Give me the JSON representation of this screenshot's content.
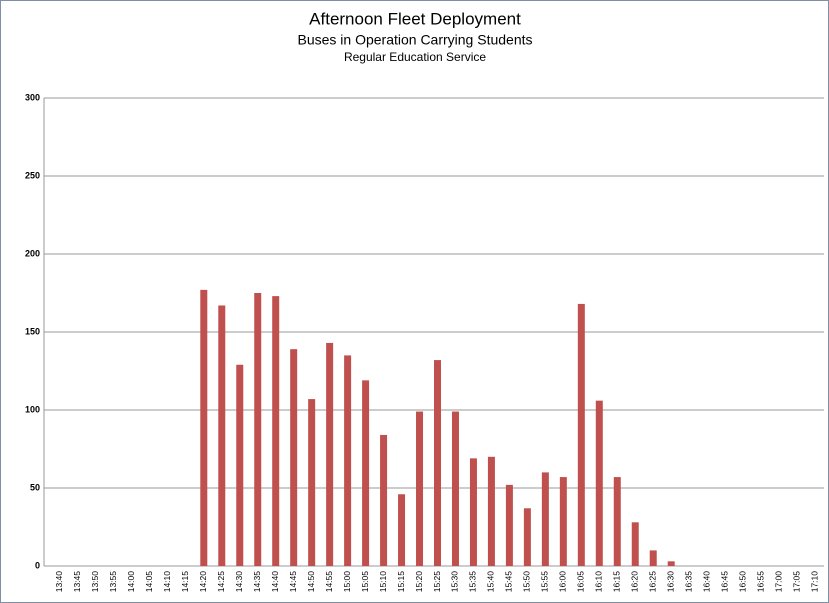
{
  "chart_data": {
    "type": "bar",
    "title": "Afternoon Fleet Deployment",
    "subtitle": "Buses in Operation Carrying Students",
    "subsubtitle": "Regular Education Service",
    "categories": [
      "13:40",
      "13:45",
      "13:50",
      "13:55",
      "14:00",
      "14:05",
      "14:10",
      "14:15",
      "14:20",
      "14:25",
      "14:30",
      "14:35",
      "14:40",
      "14:45",
      "14:50",
      "14:55",
      "15:00",
      "15:05",
      "15:10",
      "15:15",
      "15:20",
      "15:25",
      "15:30",
      "15:35",
      "15:40",
      "15:45",
      "15:50",
      "15:55",
      "16:00",
      "16:05",
      "16:10",
      "16:15",
      "16:20",
      "16:25",
      "16:30",
      "16:35",
      "16:40",
      "16:45",
      "16:50",
      "16:55",
      "17:00",
      "17:05",
      "17:10"
    ],
    "values": [
      0,
      0,
      0,
      0,
      0,
      0,
      0,
      0,
      177,
      167,
      129,
      175,
      173,
      139,
      107,
      143,
      135,
      119,
      84,
      46,
      99,
      132,
      99,
      69,
      70,
      52,
      37,
      60,
      57,
      168,
      106,
      57,
      28,
      10,
      3,
      0,
      0,
      0,
      0,
      0,
      0,
      0,
      0
    ],
    "color": "#c0504d",
    "ylim": [
      0,
      300
    ],
    "yticks": [
      0,
      50,
      100,
      150,
      200,
      250,
      300
    ],
    "grid": true
  }
}
